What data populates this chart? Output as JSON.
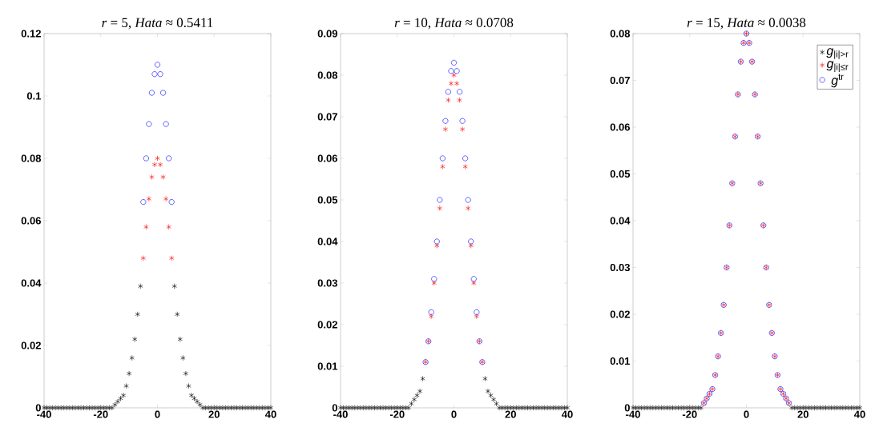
{
  "chart_data": [
    {
      "type": "scatter",
      "title": "*r* = 5, *Hata* ≈ 0.5411",
      "xlim": [
        -40,
        40
      ],
      "ylim": [
        0,
        0.12
      ],
      "xticks": [
        -40,
        -20,
        0,
        20,
        40
      ],
      "yticks": [
        0,
        0.02,
        0.04,
        0.06,
        0.08,
        0.1,
        0.12
      ],
      "series": [
        {
          "color": "#000000",
          "marker": "cross",
          "x": [
            -40,
            -39,
            -38,
            -37,
            -36,
            -35,
            -34,
            -33,
            -32,
            -31,
            -30,
            -29,
            -28,
            -27,
            -26,
            -25,
            -24,
            -23,
            -22,
            -21,
            -20,
            -19,
            -18,
            -17,
            -16,
            -15,
            -14,
            -13,
            -12,
            -11,
            -10,
            -9,
            -8,
            -7,
            -6,
            6,
            7,
            8,
            9,
            10,
            11,
            12,
            13,
            14,
            15,
            16,
            17,
            18,
            19,
            20,
            21,
            22,
            23,
            24,
            25,
            26,
            27,
            28,
            29,
            30,
            31,
            32,
            33,
            34,
            35,
            36,
            37,
            38,
            39,
            40
          ],
          "values": [
            0,
            0,
            0,
            0,
            0,
            0,
            0,
            0,
            0,
            0,
            0,
            0,
            0,
            0,
            0,
            0,
            0,
            0,
            0,
            0,
            0,
            0,
            0,
            0,
            0,
            0.001,
            0.002,
            0.003,
            0.004,
            0.007,
            0.011,
            0.016,
            0.022,
            0.03,
            0.039,
            0.039,
            0.03,
            0.022,
            0.016,
            0.011,
            0.007,
            0.004,
            0.003,
            0.002,
            0.001,
            0,
            0,
            0,
            0,
            0,
            0,
            0,
            0,
            0,
            0,
            0,
            0,
            0,
            0,
            0,
            0,
            0,
            0,
            0,
            0,
            0,
            0,
            0,
            0,
            0
          ]
        },
        {
          "color": "#ff0000",
          "marker": "cross",
          "x": [
            -5,
            -4,
            -3,
            -2,
            -1,
            0,
            1,
            2,
            3,
            4,
            5
          ],
          "values": [
            0.048,
            0.058,
            0.067,
            0.074,
            0.078,
            0.08,
            0.078,
            0.074,
            0.067,
            0.058,
            0.048
          ]
        },
        {
          "color": "#0000ff",
          "marker": "circle",
          "x": [
            -5,
            -4,
            -3,
            -2,
            -1,
            0,
            1,
            2,
            3,
            4,
            5
          ],
          "values": [
            0.066,
            0.08,
            0.091,
            0.101,
            0.107,
            0.11,
            0.107,
            0.101,
            0.091,
            0.08,
            0.066
          ]
        }
      ]
    },
    {
      "type": "scatter",
      "title": "*r* = 10, *Hata* ≈ 0.0708",
      "xlim": [
        -40,
        40
      ],
      "ylim": [
        0,
        0.09
      ],
      "xticks": [
        -40,
        -20,
        0,
        20,
        40
      ],
      "yticks": [
        0,
        0.01,
        0.02,
        0.03,
        0.04,
        0.05,
        0.06,
        0.07,
        0.08,
        0.09
      ],
      "series": [
        {
          "color": "#000000",
          "marker": "cross",
          "x": [
            -40,
            -39,
            -38,
            -37,
            -36,
            -35,
            -34,
            -33,
            -32,
            -31,
            -30,
            -29,
            -28,
            -27,
            -26,
            -25,
            -24,
            -23,
            -22,
            -21,
            -20,
            -19,
            -18,
            -17,
            -16,
            -15,
            -14,
            -13,
            -12,
            -11,
            11,
            12,
            13,
            14,
            15,
            16,
            17,
            18,
            19,
            20,
            21,
            22,
            23,
            24,
            25,
            26,
            27,
            28,
            29,
            30,
            31,
            32,
            33,
            34,
            35,
            36,
            37,
            38,
            39,
            40
          ],
          "values": [
            0,
            0,
            0,
            0,
            0,
            0,
            0,
            0,
            0,
            0,
            0,
            0,
            0,
            0,
            0,
            0,
            0,
            0,
            0,
            0,
            0,
            0,
            0,
            0,
            0,
            0.001,
            0.002,
            0.003,
            0.004,
            0.007,
            0.007,
            0.004,
            0.003,
            0.002,
            0.001,
            0,
            0,
            0,
            0,
            0,
            0,
            0,
            0,
            0,
            0,
            0,
            0,
            0,
            0,
            0,
            0,
            0,
            0,
            0,
            0,
            0,
            0,
            0,
            0,
            0
          ]
        },
        {
          "color": "#ff0000",
          "marker": "cross",
          "x": [
            -10,
            -9,
            -8,
            -7,
            -6,
            -5,
            -4,
            -3,
            -2,
            -1,
            0,
            1,
            2,
            3,
            4,
            5,
            6,
            7,
            8,
            9,
            10
          ],
          "values": [
            0.011,
            0.016,
            0.022,
            0.03,
            0.039,
            0.048,
            0.058,
            0.067,
            0.074,
            0.078,
            0.08,
            0.078,
            0.074,
            0.067,
            0.058,
            0.048,
            0.039,
            0.03,
            0.022,
            0.016,
            0.011
          ]
        },
        {
          "color": "#0000ff",
          "marker": "circle",
          "x": [
            -10,
            -9,
            -8,
            -7,
            -6,
            -5,
            -4,
            -3,
            -2,
            -1,
            0,
            1,
            2,
            3,
            4,
            5,
            6,
            7,
            8,
            9,
            10
          ],
          "values": [
            0.011,
            0.016,
            0.023,
            0.031,
            0.04,
            0.05,
            0.06,
            0.069,
            0.076,
            0.081,
            0.083,
            0.081,
            0.076,
            0.069,
            0.06,
            0.05,
            0.04,
            0.031,
            0.023,
            0.016,
            0.011
          ]
        }
      ]
    },
    {
      "type": "scatter",
      "title": "*r* = 15, *Hata* ≈ 0.0038",
      "xlim": [
        -40,
        40
      ],
      "ylim": [
        0,
        0.08
      ],
      "xticks": [
        -40,
        -20,
        0,
        20,
        40
      ],
      "yticks": [
        0,
        0.01,
        0.02,
        0.03,
        0.04,
        0.05,
        0.06,
        0.07,
        0.08
      ],
      "legend": "top right",
      "series": [
        {
          "name": "*g*$_{|i|>r}$",
          "color": "#000000",
          "marker": "cross",
          "x": [
            -40,
            -39,
            -38,
            -37,
            -36,
            -35,
            -34,
            -33,
            -32,
            -31,
            -30,
            -29,
            -28,
            -27,
            -26,
            -25,
            -24,
            -23,
            -22,
            -21,
            -20,
            -19,
            -18,
            -17,
            -16,
            16,
            17,
            18,
            19,
            20,
            21,
            22,
            23,
            24,
            25,
            26,
            27,
            28,
            29,
            30,
            31,
            32,
            33,
            34,
            35,
            36,
            37,
            38,
            39,
            40
          ],
          "values": [
            0,
            0,
            0,
            0,
            0,
            0,
            0,
            0,
            0,
            0,
            0,
            0,
            0,
            0,
            0,
            0,
            0,
            0,
            0,
            0,
            0,
            0,
            0,
            0,
            0,
            0,
            0,
            0,
            0,
            0,
            0,
            0,
            0,
            0,
            0,
            0,
            0,
            0,
            0,
            0,
            0,
            0,
            0,
            0,
            0,
            0,
            0,
            0,
            0,
            0
          ]
        },
        {
          "name": "*g*$_{|i|≤r}$",
          "color": "#ff0000",
          "marker": "cross",
          "x": [
            -15,
            -14,
            -13,
            -12,
            -11,
            -10,
            -9,
            -8,
            -7,
            -6,
            -5,
            -4,
            -3,
            -2,
            -1,
            0,
            1,
            2,
            3,
            4,
            5,
            6,
            7,
            8,
            9,
            10,
            11,
            12,
            13,
            14,
            15
          ],
          "values": [
            0.001,
            0.002,
            0.003,
            0.004,
            0.007,
            0.011,
            0.016,
            0.022,
            0.03,
            0.039,
            0.048,
            0.058,
            0.067,
            0.074,
            0.078,
            0.08,
            0.078,
            0.074,
            0.067,
            0.058,
            0.048,
            0.039,
            0.03,
            0.022,
            0.016,
            0.011,
            0.007,
            0.004,
            0.003,
            0.002,
            0.001
          ]
        },
        {
          "name": "*g*$^{tr}$",
          "color": "#0000ff",
          "marker": "circle",
          "x": [
            -15,
            -14,
            -13,
            -12,
            -11,
            -10,
            -9,
            -8,
            -7,
            -6,
            -5,
            -4,
            -3,
            -2,
            -1,
            0,
            1,
            2,
            3,
            4,
            5,
            6,
            7,
            8,
            9,
            10,
            11,
            12,
            13,
            14,
            15
          ],
          "values": [
            0.001,
            0.002,
            0.003,
            0.004,
            0.007,
            0.011,
            0.016,
            0.022,
            0.03,
            0.039,
            0.048,
            0.058,
            0.067,
            0.074,
            0.078,
            0.08,
            0.078,
            0.074,
            0.067,
            0.058,
            0.048,
            0.039,
            0.03,
            0.022,
            0.016,
            0.011,
            0.007,
            0.004,
            0.003,
            0.002,
            0.001
          ]
        }
      ]
    }
  ]
}
